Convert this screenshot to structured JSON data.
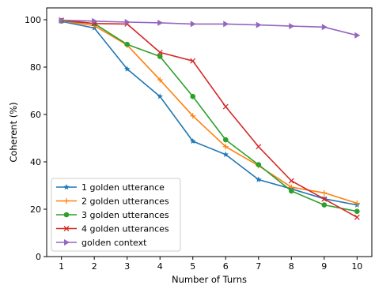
{
  "chart_data": {
    "type": "line",
    "xlabel": "Number of Turns",
    "ylabel": "Coherent (%)",
    "x": [
      1,
      2,
      3,
      4,
      5,
      6,
      7,
      8,
      9,
      10
    ],
    "xlim": [
      0.55,
      10.45
    ],
    "ylim": [
      0,
      105
    ],
    "xticks": [
      1,
      2,
      3,
      4,
      5,
      6,
      7,
      8,
      9,
      10
    ],
    "yticks": [
      0,
      20,
      40,
      60,
      80,
      100
    ],
    "grid": false,
    "legend_position": "lower-left",
    "series": [
      {
        "name": "1 golden utterance",
        "color": "#1f77b4",
        "marker": "star",
        "values": [
          99.3,
          96.5,
          79.2,
          67.6,
          48.7,
          43.1,
          32.5,
          28.6,
          24.4,
          21.8
        ]
      },
      {
        "name": "2 golden utterances",
        "color": "#ff7f0e",
        "marker": "plus",
        "values": [
          99.5,
          97.5,
          89.3,
          74.6,
          59.4,
          46.4,
          38.4,
          29.3,
          26.9,
          22.5
        ]
      },
      {
        "name": "3 golden utterances",
        "color": "#2ca02c",
        "marker": "circle",
        "values": [
          99.6,
          98.4,
          89.6,
          84.5,
          67.6,
          49.3,
          38.8,
          27.7,
          21.8,
          19.1
        ]
      },
      {
        "name": "4 golden utterances",
        "color": "#d62728",
        "marker": "x",
        "values": [
          99.8,
          98.4,
          98.2,
          86.2,
          82.6,
          63.3,
          46.4,
          32.0,
          24.3,
          16.6
        ]
      },
      {
        "name": "golden context",
        "color": "#9467bd",
        "marker": "triangle-right",
        "values": [
          99.8,
          99.4,
          99.0,
          98.7,
          98.2,
          98.2,
          97.8,
          97.3,
          96.9,
          93.4
        ]
      }
    ]
  }
}
